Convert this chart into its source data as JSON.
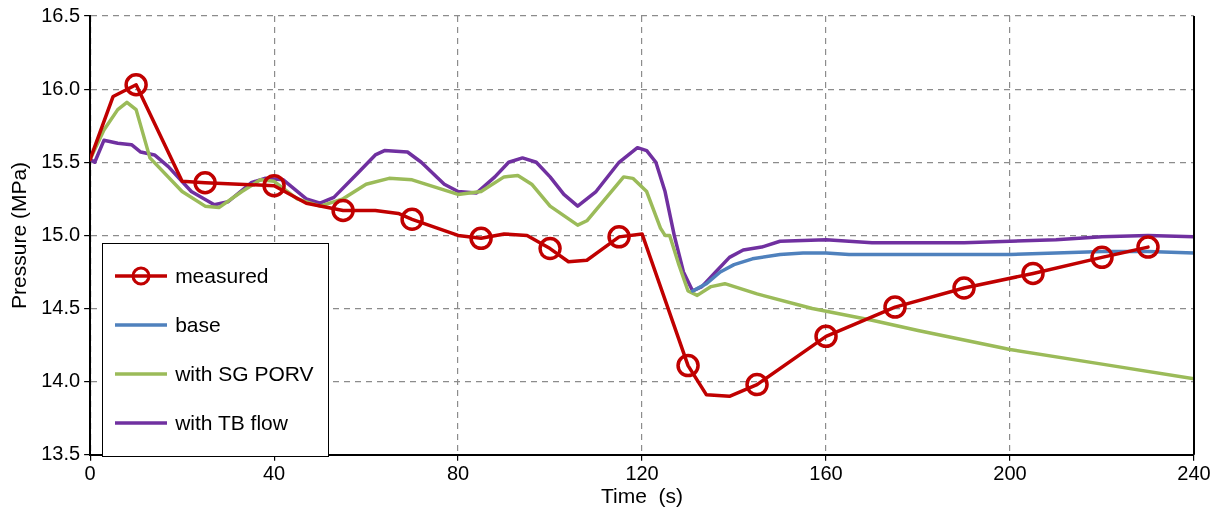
{
  "chart_data": {
    "type": "line",
    "xlabel": "Time  (s)",
    "ylabel": "Pressure (MPa)",
    "xlim": [
      0,
      240
    ],
    "ylim": [
      13.5,
      16.5
    ],
    "xticks": [
      0,
      40,
      80,
      120,
      160,
      200,
      240
    ],
    "yticks": [
      13.5,
      {
        "value": 14,
        "label": "14.0"
      },
      14.5,
      {
        "value": 15,
        "label": "15.0"
      },
      15.5,
      {
        "value": 16,
        "label": "16.0"
      },
      16.5
    ],
    "grid": true,
    "legend": "bottom left",
    "line_style": "solid",
    "series": [
      {
        "name": "measured",
        "color": "#c00000",
        "marker": "none",
        "x": [
          0,
          5,
          10,
          20,
          25,
          40,
          47,
          55,
          62,
          67,
          70,
          80,
          85,
          90,
          95,
          100,
          104,
          108,
          115,
          120,
          130,
          134,
          139,
          145,
          160,
          175,
          190,
          205,
          220,
          230
        ],
        "values": [
          15.52,
          15.95,
          16.03,
          15.37,
          15.36,
          15.34,
          15.22,
          15.17,
          15.17,
          15.15,
          15.11,
          15.0,
          14.98,
          15.01,
          15.0,
          14.91,
          14.82,
          14.83,
          14.99,
          15.01,
          14.11,
          13.91,
          13.9,
          13.98,
          14.31,
          14.51,
          14.64,
          14.74,
          14.85,
          14.92
        ]
      },
      {
        "type": "scatter",
        "color": "#c00000",
        "marker": "circle",
        "x": [
          10,
          25,
          40,
          55,
          70,
          85,
          100,
          115,
          130,
          145,
          160,
          175,
          190,
          205,
          220,
          230
        ],
        "values": [
          16.03,
          15.36,
          15.34,
          15.17,
          15.11,
          14.98,
          14.91,
          14.99,
          14.11,
          13.98,
          14.31,
          14.51,
          14.64,
          14.74,
          14.85,
          14.92
        ]
      },
      {
        "name": "base",
        "color": "#4f81bd",
        "marker": "none",
        "x": [
          131,
          134,
          137,
          140,
          144,
          150,
          155,
          160,
          165,
          200,
          210,
          220,
          230,
          240
        ],
        "values": [
          14.62,
          14.67,
          14.75,
          14.8,
          14.84,
          14.87,
          14.88,
          14.88,
          14.87,
          14.87,
          14.88,
          14.89,
          14.89,
          14.88
        ]
      },
      {
        "name": "with SG PORV",
        "color": "#9bbb59",
        "marker": "none",
        "x": [
          0,
          3,
          6,
          8,
          10,
          13,
          20,
          25,
          28,
          33,
          37,
          40,
          45,
          50,
          55,
          60,
          65,
          70,
          75,
          80,
          85,
          90,
          93,
          96,
          100,
          106,
          108,
          112,
          116,
          118,
          121,
          124,
          125,
          126,
          128,
          130,
          132,
          135,
          138,
          145,
          157,
          170,
          180,
          200,
          220,
          240
        ],
        "values": [
          15.52,
          15.72,
          15.86,
          15.91,
          15.86,
          15.53,
          15.3,
          15.2,
          15.19,
          15.3,
          15.38,
          15.37,
          15.25,
          15.2,
          15.25,
          15.35,
          15.39,
          15.38,
          15.33,
          15.28,
          15.3,
          15.4,
          15.41,
          15.35,
          15.2,
          15.07,
          15.1,
          15.25,
          15.4,
          15.39,
          15.3,
          15.05,
          15.0,
          15.0,
          14.8,
          14.62,
          14.59,
          14.65,
          14.67,
          14.6,
          14.5,
          14.42,
          14.35,
          14.22,
          14.12,
          14.02
        ]
      },
      {
        "name": "with TB flow",
        "color": "#7030a0",
        "marker": "none",
        "x": [
          0,
          1,
          3,
          6,
          9,
          11,
          14,
          17,
          22,
          27,
          30,
          35,
          38,
          42,
          47,
          50,
          53,
          58,
          62,
          64,
          69,
          72,
          77,
          80,
          84,
          88,
          91,
          94,
          97,
          100,
          103,
          106,
          110,
          115,
          119,
          121,
          123,
          125,
          127,
          129,
          131,
          133,
          136,
          139,
          142,
          146,
          150,
          160,
          170,
          190,
          210,
          220,
          230,
          240
        ],
        "values": [
          15.52,
          15.5,
          15.65,
          15.63,
          15.62,
          15.57,
          15.55,
          15.47,
          15.3,
          15.21,
          15.23,
          15.36,
          15.39,
          15.38,
          15.25,
          15.22,
          15.26,
          15.42,
          15.55,
          15.58,
          15.57,
          15.5,
          15.35,
          15.3,
          15.29,
          15.4,
          15.5,
          15.53,
          15.5,
          15.4,
          15.28,
          15.2,
          15.3,
          15.5,
          15.6,
          15.58,
          15.5,
          15.3,
          15.0,
          14.75,
          14.62,
          14.65,
          14.75,
          14.85,
          14.9,
          14.92,
          14.96,
          14.97,
          14.95,
          14.95,
          14.97,
          14.99,
          15.0,
          14.99
        ]
      }
    ]
  }
}
